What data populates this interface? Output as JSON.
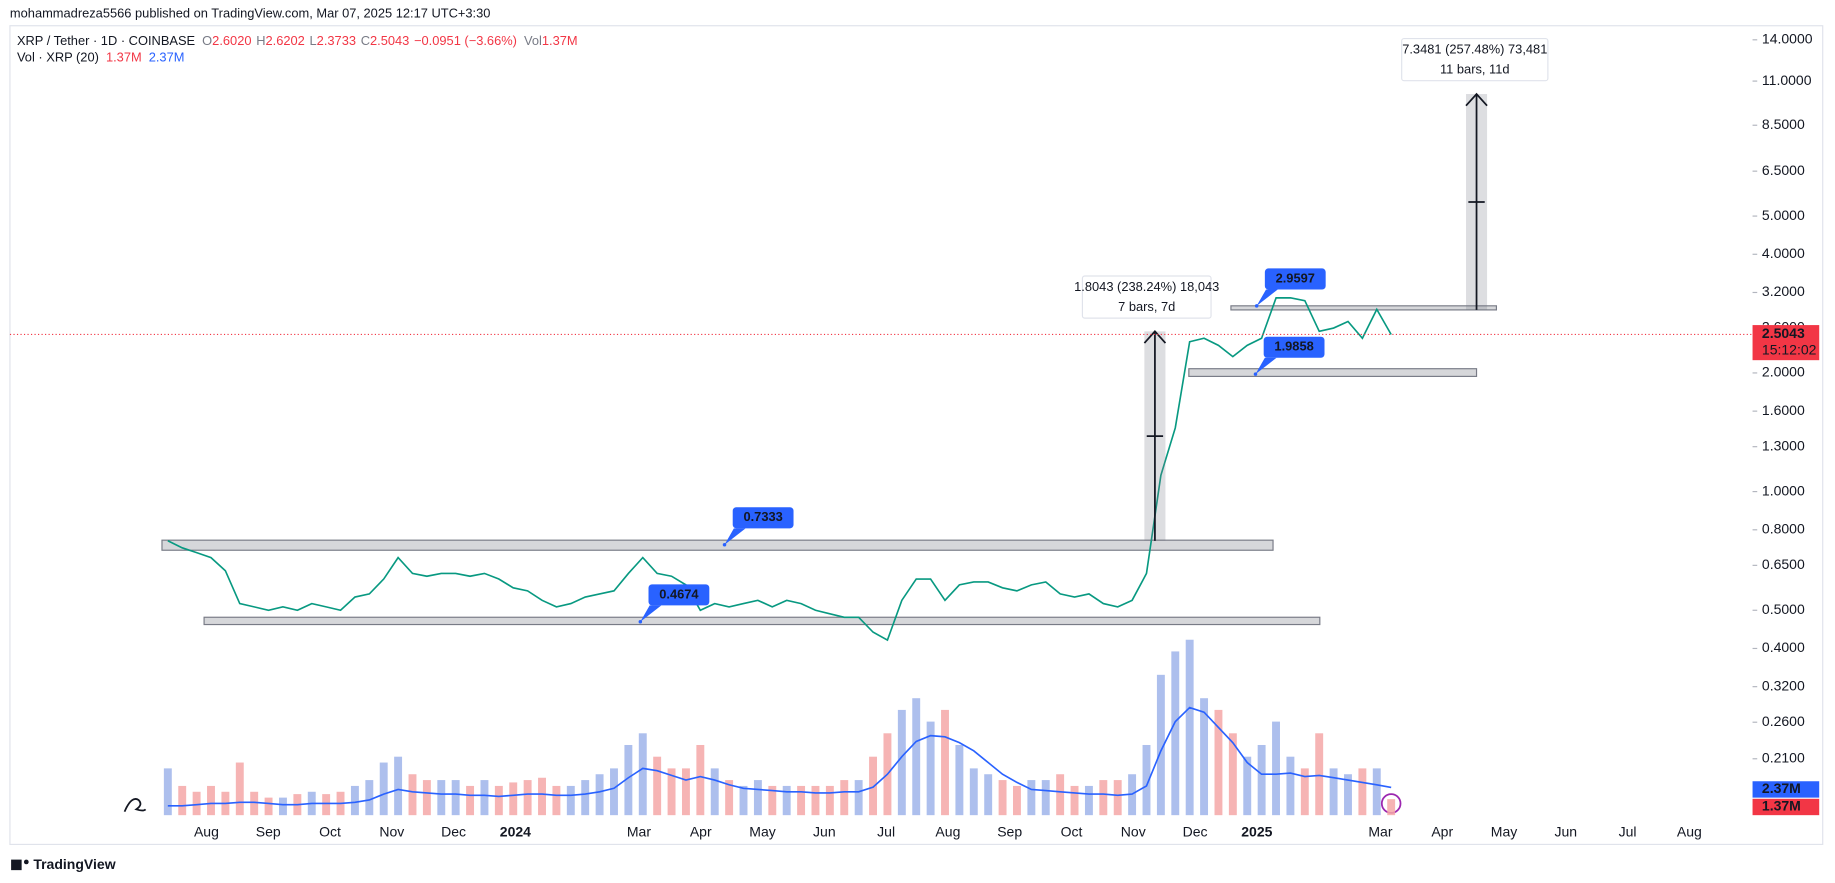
{
  "header": {
    "publisher": "mohammadreza5566 published on TradingView.com, Mar 07, 2025 12:17 UTC+3:30",
    "symbol": "XRP / Tether · 1D · COINBASE",
    "ohlc": [
      {
        "key": "O",
        "value": "2.6020"
      },
      {
        "key": "H",
        "value": "2.6202"
      },
      {
        "key": "L",
        "value": "2.3733"
      },
      {
        "key": "C",
        "value": "2.5043"
      }
    ],
    "change": "−0.0951 (−3.66%)",
    "vol_key": "Vol",
    "vol_value": "1.37M",
    "indicator": "Vol · XRP (20)",
    "indicator_values": [
      "1.37M",
      "2.37M"
    ],
    "countdown": "15:12:02",
    "footer": "TradingView"
  },
  "chart_data": {
    "type": "line",
    "log_scale": true,
    "grid": false,
    "month_labels": [
      "Aug",
      "Sep",
      "Oct",
      "Nov",
      "Dec",
      "2024",
      null,
      "Mar",
      "Apr",
      "May",
      "Jun",
      "Jul",
      "Aug",
      "Sep",
      "Oct",
      "Nov",
      "Dec",
      "2025",
      null,
      "Mar",
      "Apr",
      "May",
      "Jun",
      "Jul",
      "Aug"
    ],
    "ylim": [
      0.148,
      15.2
    ],
    "yticks": [
      {
        "value": 14,
        "label": "14.0000"
      },
      {
        "value": 11,
        "label": "11.0000"
      },
      {
        "value": 8.5,
        "label": "8.5000"
      },
      {
        "value": 6.5,
        "label": "6.5000"
      },
      {
        "value": 5,
        "label": "5.0000"
      },
      {
        "value": 4,
        "label": "4.0000"
      },
      {
        "value": 3.2,
        "label": "3.2000"
      },
      {
        "value": 2.6,
        "label": "2.6000"
      },
      {
        "value": 2,
        "label": "2.0000"
      },
      {
        "value": 1.6,
        "label": "1.6000"
      },
      {
        "value": 1.3,
        "label": "1.3000"
      },
      {
        "value": 1,
        "label": "1.0000"
      },
      {
        "value": 0.8,
        "label": "0.8000"
      },
      {
        "value": 0.65,
        "label": "0.6500"
      },
      {
        "value": 0.5,
        "label": "0.5000"
      },
      {
        "value": 0.4,
        "label": "0.4000"
      },
      {
        "value": 0.32,
        "label": "0.3200"
      },
      {
        "value": 0.26,
        "label": "0.2600"
      },
      {
        "value": 0.21,
        "label": "0.2100"
      }
    ],
    "y2lim": [
      0,
      67.5
    ],
    "series": [
      {
        "name": "XRP / Tether",
        "color": "#089981",
        "values": [
          0.75,
          0.72,
          0.7,
          0.68,
          0.63,
          0.52,
          0.51,
          0.5,
          0.51,
          0.5,
          0.52,
          0.51,
          0.5,
          0.54,
          0.55,
          0.6,
          0.68,
          0.62,
          0.61,
          0.62,
          0.62,
          0.61,
          0.62,
          0.6,
          0.57,
          0.56,
          0.53,
          0.51,
          0.52,
          0.54,
          0.55,
          0.56,
          0.62,
          0.68,
          0.62,
          0.61,
          0.58,
          0.5,
          0.52,
          0.51,
          0.52,
          0.53,
          0.51,
          0.53,
          0.52,
          0.5,
          0.49,
          0.48,
          0.48,
          0.44,
          0.42,
          0.53,
          0.6,
          0.6,
          0.53,
          0.58,
          0.59,
          0.59,
          0.57,
          0.56,
          0.58,
          0.59,
          0.55,
          0.54,
          0.55,
          0.52,
          0.51,
          0.53,
          0.62,
          1.1,
          1.45,
          2.4,
          2.45,
          2.35,
          2.2,
          2.35,
          2.45,
          3.1,
          3.1,
          3.05,
          2.55,
          2.6,
          2.7,
          2.45,
          2.9,
          2.5043
        ]
      },
      {
        "name": "Vol",
        "axis": "y2",
        "up_color": "#9fb4ea",
        "down_color": "#f4a7a7",
        "values": [
          4.0,
          2.5,
          2.0,
          2.5,
          2.0,
          4.5,
          2.0,
          1.5,
          1.5,
          1.8,
          2.0,
          1.8,
          2.0,
          2.5,
          3.0,
          4.5,
          5.0,
          3.5,
          3.0,
          3.0,
          3.0,
          2.5,
          3.0,
          2.5,
          2.8,
          3.0,
          3.2,
          2.5,
          2.5,
          3.0,
          3.5,
          4.0,
          6.0,
          7.0,
          5.0,
          4.0,
          4.0,
          6.0,
          4.0,
          3.0,
          2.5,
          3.0,
          2.5,
          2.5,
          2.5,
          2.5,
          2.5,
          3.0,
          3.0,
          5.0,
          7.0,
          9.0,
          10.0,
          8.0,
          9.0,
          6.0,
          4.0,
          3.5,
          3.0,
          2.5,
          3.0,
          3.0,
          3.5,
          2.5,
          2.5,
          3.0,
          3.0,
          3.5,
          6.0,
          12.0,
          14.0,
          15.0,
          10.0,
          9.0,
          7.0,
          5.0,
          6.0,
          8.0,
          5.0,
          4.0,
          7.0,
          4.0,
          3.5,
          4.0,
          4.0,
          1.37
        ],
        "value_labels": [
          null,
          null,
          null,
          null,
          null,
          null,
          null,
          null,
          null,
          null,
          null,
          null,
          null,
          null,
          null,
          null,
          null,
          null,
          null,
          null,
          null,
          null,
          null,
          null,
          null,
          null,
          null,
          null,
          null,
          null,
          null,
          null,
          null,
          null,
          null,
          null,
          null,
          null,
          null,
          null,
          null,
          null,
          null,
          null,
          null,
          null,
          null,
          null,
          null,
          null,
          null,
          null,
          null,
          null,
          null,
          null,
          null,
          null,
          null,
          null,
          null,
          null,
          null,
          null,
          null,
          null,
          null,
          null,
          null,
          null,
          null,
          null,
          null,
          null,
          null,
          null,
          null,
          null,
          null,
          null,
          null,
          null,
          null,
          null,
          null,
          "1.37M"
        ]
      },
      {
        "name": "Vol · XRP (20)",
        "axis": "y2",
        "color": "#2962ff",
        "values": [
          0.8,
          0.8,
          0.9,
          1.0,
          1.0,
          1.1,
          1.1,
          1.0,
          0.9,
          0.9,
          1.0,
          1.0,
          1.0,
          1.1,
          1.3,
          1.8,
          2.2,
          2.0,
          1.9,
          1.8,
          1.8,
          1.7,
          1.7,
          1.6,
          1.7,
          1.8,
          1.8,
          1.7,
          1.7,
          1.8,
          2.0,
          2.3,
          3.2,
          4.0,
          3.8,
          3.4,
          3.0,
          3.3,
          3.0,
          2.6,
          2.3,
          2.2,
          2.1,
          2.0,
          2.0,
          1.9,
          1.9,
          2.0,
          2.0,
          2.4,
          3.5,
          5.0,
          6.3,
          6.8,
          6.7,
          6.2,
          5.5,
          4.5,
          3.5,
          2.8,
          2.2,
          2.1,
          2.0,
          1.9,
          1.8,
          1.8,
          1.7,
          1.8,
          2.5,
          5.5,
          8.0,
          9.2,
          8.8,
          7.5,
          6.2,
          4.5,
          3.5,
          3.5,
          3.6,
          3.3,
          3.4,
          3.2,
          3.0,
          2.8,
          2.6,
          2.37
        ],
        "value_labels": [
          null,
          null,
          null,
          null,
          null,
          null,
          null,
          null,
          null,
          null,
          null,
          null,
          null,
          null,
          null,
          null,
          null,
          null,
          null,
          null,
          null,
          null,
          null,
          null,
          null,
          null,
          null,
          null,
          null,
          null,
          null,
          null,
          null,
          null,
          null,
          null,
          null,
          null,
          null,
          null,
          null,
          null,
          null,
          null,
          null,
          null,
          null,
          null,
          null,
          null,
          null,
          null,
          null,
          null,
          null,
          null,
          null,
          null,
          null,
          null,
          null,
          null,
          null,
          null,
          null,
          null,
          null,
          null,
          null,
          null,
          null,
          null,
          null,
          null,
          null,
          null,
          null,
          null,
          null,
          null,
          null,
          null,
          null,
          null,
          null,
          "2.37M"
        ]
      }
    ],
    "zones": [
      {
        "low": 0.71,
        "high": 0.753
      },
      {
        "low": 0.46,
        "high": 0.48
      },
      {
        "low": 1.96,
        "high": 2.05
      },
      {
        "low": 2.89,
        "high": 2.96
      }
    ],
    "price_callouts": [
      0.7333,
      0.4674,
      2.9597,
      1.9858
    ],
    "measures": [
      {
        "from": 0.75,
        "to": 2.55,
        "label": "1.8043 (238.24%) 18,043",
        "bars": "7 bars, 7d"
      },
      {
        "from": 2.89,
        "to": 10.2,
        "label": "7.3481 (257.48%) 73,481",
        "bars": "11 bars, 11d"
      }
    ]
  }
}
